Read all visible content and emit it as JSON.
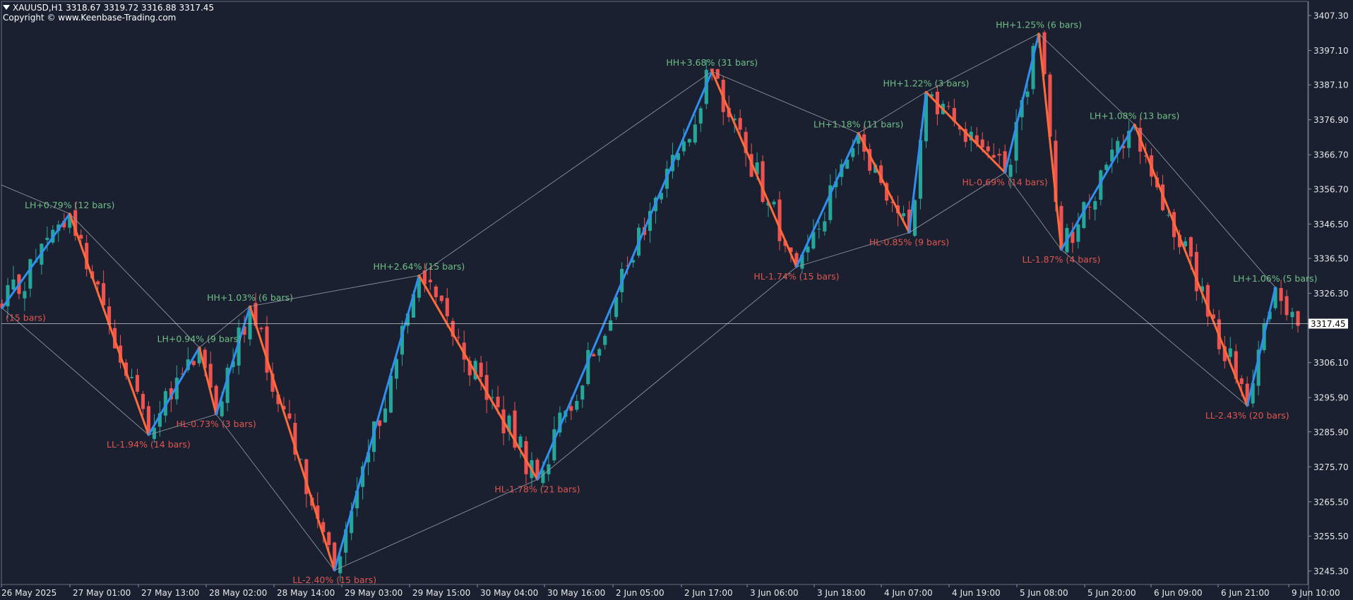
{
  "header": {
    "symbol_line": "XAUUSD,H1  3318.67 3319.72 3316.88 3317.45",
    "copyright": "Copyright © www.Keenbase-Trading.com"
  },
  "colors": {
    "background": "#1b2030",
    "bull_candle": "#26a69a",
    "bear_candle": "#ef5350",
    "zigzag_up": "#2f8ff0",
    "zigzag_down": "#ff6a3a",
    "label_high": "#6fbf86",
    "label_low": "#e0564e",
    "price_tag_bg": "#ffffff"
  },
  "chart_data": {
    "type": "candlestick",
    "symbol": "XAUUSD",
    "timeframe": "H1",
    "ylim": [
      3242,
      3412
    ],
    "y_ticks": [
      3407.3,
      3397.1,
      3387.1,
      3376.9,
      3366.7,
      3356.7,
      3346.5,
      3336.5,
      3326.3,
      3316.1,
      3306.1,
      3295.9,
      3285.9,
      3275.7,
      3265.5,
      3255.5,
      3245.3
    ],
    "x_ticks": [
      "26 May 2025",
      "27 May 01:00",
      "27 May 13:00",
      "28 May 02:00",
      "28 May 14:00",
      "29 May 03:00",
      "29 May 15:00",
      "30 May 04:00",
      "30 May 16:00",
      "2 Jun 05:00",
      "2 Jun 17:00",
      "3 Jun 06:00",
      "3 Jun 18:00",
      "4 Jun 07:00",
      "4 Jun 19:00",
      "5 Jun 08:00",
      "5 Jun 20:00",
      "6 Jun 09:00",
      "6 Jun 21:00",
      "9 Jun 10:00"
    ],
    "current_price": "3317.45",
    "pivots": [
      {
        "bar": 0,
        "price": 3322.0,
        "type": "low",
        "label": "(15 bars)"
      },
      {
        "bar": 12,
        "price": 3349.5,
        "type": "high",
        "label": "LH+0.79% (12 bars)"
      },
      {
        "bar": 26,
        "price": 3285.0,
        "type": "low",
        "label": "LL-1.94% (14 bars)"
      },
      {
        "bar": 35,
        "price": 3310.5,
        "type": "high",
        "label": "LH+0.94% (9 bars)"
      },
      {
        "bar": 38,
        "price": 3291.0,
        "type": "low",
        "label": "HL-0.73% (3 bars)"
      },
      {
        "bar": 44,
        "price": 3322.5,
        "type": "high",
        "label": "HH+1.03% (6 bars)"
      },
      {
        "bar": 59,
        "price": 3245.5,
        "type": "low",
        "label": "LL-2.40% (15 bars)"
      },
      {
        "bar": 74,
        "price": 3331.5,
        "type": "high",
        "label": "HH+2.64% (15 bars)"
      },
      {
        "bar": 95,
        "price": 3272.0,
        "type": "low",
        "label": "HL-1.78% (21 bars)"
      },
      {
        "bar": 126,
        "price": 3391.0,
        "type": "high",
        "label": "HH+3.68% (31 bars)"
      },
      {
        "bar": 141,
        "price": 3334.0,
        "type": "low",
        "label": "HL-1.74% (15 bars)"
      },
      {
        "bar": 152,
        "price": 3373.0,
        "type": "high",
        "label": "LH+1.18% (11 bars)"
      },
      {
        "bar": 161,
        "price": 3344.0,
        "type": "low",
        "label": "HL-0.85% (9 bars)"
      },
      {
        "bar": 164,
        "price": 3385.0,
        "type": "high",
        "label": "HH+1.22% (3 bars)"
      },
      {
        "bar": 178,
        "price": 3361.5,
        "type": "low",
        "label": "HL-0.69% (14 bars)"
      },
      {
        "bar": 184,
        "price": 3402.0,
        "type": "high",
        "label": "HH+1.25% (6 bars)"
      },
      {
        "bar": 188,
        "price": 3339.0,
        "type": "low",
        "label": "LL-1.87% (4 bars)"
      },
      {
        "bar": 201,
        "price": 3375.5,
        "type": "high",
        "label": "LH+1.08% (13 bars)"
      },
      {
        "bar": 221,
        "price": 3293.5,
        "type": "low",
        "label": "LL-2.43% (20 bars)"
      },
      {
        "bar": 226,
        "price": 3328.0,
        "type": "high",
        "label": "LH+1.06% (5 bars)"
      }
    ]
  }
}
